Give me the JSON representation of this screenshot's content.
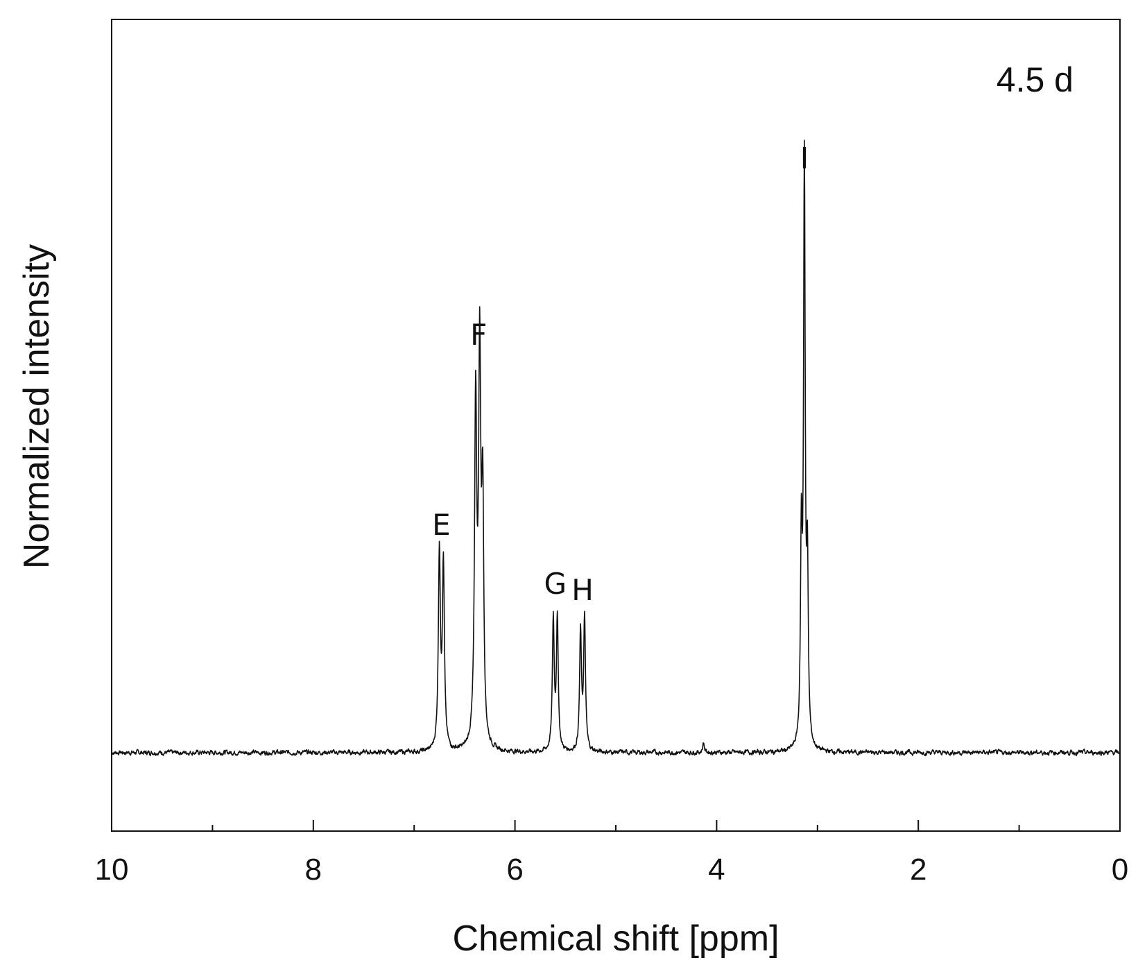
{
  "chart_data": {
    "type": "line",
    "xlabel": "Chemical shift [ppm]",
    "ylabel": "Normalized intensity",
    "xlim": [
      10,
      0
    ],
    "x_reversed": true,
    "ylim": [
      -0.12,
      1.12
    ],
    "x_major_ticks": [
      10,
      8,
      6,
      4,
      2,
      0
    ],
    "x_minor_ticks": [
      9,
      7,
      5,
      3,
      1
    ],
    "grid": false,
    "annotations": [
      {
        "label": "4.5 d",
        "placement": "top-right"
      }
    ],
    "peaks": [
      {
        "label": "E",
        "shift": 6.73,
        "intensity": 0.32
      },
      {
        "label": "F",
        "shift": 6.36,
        "intensity": 0.61
      },
      {
        "label": "G",
        "shift": 5.6,
        "intensity": 0.23
      },
      {
        "label": "H",
        "shift": 5.33,
        "intensity": 0.22
      },
      {
        "label": "I",
        "shift": 3.13,
        "intensity": 0.88
      }
    ],
    "series": [
      {
        "lines": [
          {
            "center": 6.75,
            "height": 0.3,
            "width": 0.012
          },
          {
            "center": 6.71,
            "height": 0.28,
            "width": 0.012
          },
          {
            "center": 6.39,
            "height": 0.52,
            "width": 0.013
          },
          {
            "center": 6.35,
            "height": 0.58,
            "width": 0.013
          },
          {
            "center": 6.32,
            "height": 0.36,
            "width": 0.012
          },
          {
            "center": 5.62,
            "height": 0.2,
            "width": 0.011
          },
          {
            "center": 5.58,
            "height": 0.2,
            "width": 0.011
          },
          {
            "center": 5.35,
            "height": 0.18,
            "width": 0.011
          },
          {
            "center": 5.31,
            "height": 0.2,
            "width": 0.011
          },
          {
            "center": 4.13,
            "height": 0.015,
            "width": 0.01
          },
          {
            "center": 3.16,
            "height": 0.3,
            "width": 0.01
          },
          {
            "center": 3.13,
            "height": 0.88,
            "width": 0.01
          },
          {
            "center": 3.1,
            "height": 0.26,
            "width": 0.01
          }
        ],
        "noise_level": 0.006
      }
    ]
  }
}
